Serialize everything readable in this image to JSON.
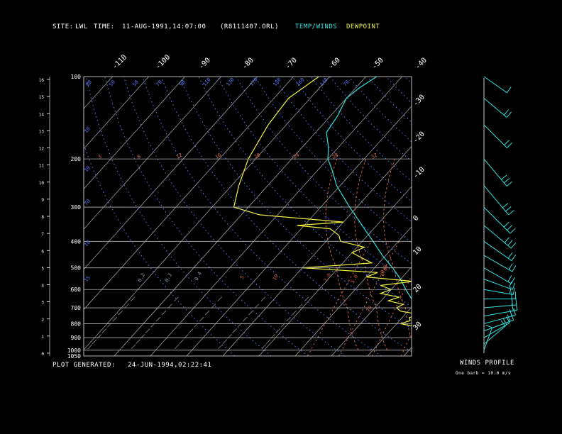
{
  "header": {
    "site_label": "SITE:",
    "site_value": "LWL",
    "time_label": "TIME:",
    "time_value": "11-AUG-1991,14:07:00",
    "file": "(R8111407.ORL)",
    "legend_temp": "TEMP/WINDS",
    "legend_dew": "DEWPOINT"
  },
  "footer": {
    "plot_generated_label": "PLOT GENERATED:",
    "plot_generated_value": "24-JUN-1994,02:22:41",
    "winds_title": "WINDS PROFILE",
    "barb_note": "One barb = 10.0 m/s"
  },
  "colors": {
    "temp": "#33e0e0",
    "dewpoint": "#f0f040",
    "isobar": "#b0b0b0",
    "isotherm": "#b0b0b0",
    "dry_adiabat": "#5a7cff",
    "mixing_ratio": "#e07050",
    "moist_adiabat": "#d06040"
  },
  "chart_data": {
    "type": "line",
    "pressure_levels": [
      100,
      200,
      300,
      400,
      500,
      600,
      700,
      800,
      900,
      1000,
      1050
    ],
    "pressure_labels": [
      "100",
      "200",
      "300",
      "400",
      "500",
      "600",
      "700",
      "800",
      "900",
      "1000",
      "1050"
    ],
    "height_km": [
      "0",
      "1",
      "2",
      "3",
      "4",
      "5",
      "6",
      "7",
      "8",
      "9",
      "10",
      "11",
      "12",
      "13",
      "14",
      "15",
      "16"
    ],
    "top_temp_labels": [
      "-110",
      "-100",
      "-90",
      "-80",
      "-70",
      "-60",
      "-50",
      "-40"
    ],
    "right_temp_labels": [
      "-30",
      "-20",
      "-10",
      "0",
      "10",
      "20",
      "30"
    ],
    "dry_adiabat_labels": [
      "80",
      "50",
      "50",
      "70",
      "90",
      "110",
      "130",
      "170",
      "150",
      "160",
      "140",
      "70",
      "10",
      "10",
      "70",
      "10",
      "15"
    ],
    "mixing_ratio_labels": [
      "3",
      "8",
      "12",
      "16",
      "20",
      "24",
      "28",
      "32"
    ],
    "moist_adiabat_labels": [
      "0.2",
      "0.3",
      "0.4",
      "5",
      "10",
      "2.0",
      "5.0",
      "6.0",
      "20",
      "0.0"
    ],
    "temperature": {
      "name": "TEMP/WINDS",
      "points": [
        [
          1000,
          24
        ],
        [
          950,
          20
        ],
        [
          900,
          16
        ],
        [
          850,
          13
        ],
        [
          800,
          10
        ],
        [
          750,
          6
        ],
        [
          700,
          2
        ],
        [
          650,
          -2
        ],
        [
          600,
          -6
        ],
        [
          550,
          -10
        ],
        [
          500,
          -15
        ],
        [
          450,
          -21
        ],
        [
          400,
          -27
        ],
        [
          350,
          -34
        ],
        [
          300,
          -42
        ],
        [
          250,
          -51
        ],
        [
          220,
          -56
        ],
        [
          200,
          -60
        ],
        [
          180,
          -63
        ],
        [
          160,
          -67
        ],
        [
          140,
          -68
        ],
        [
          120,
          -70
        ],
        [
          110,
          -69
        ],
        [
          100,
          -67
        ]
      ]
    },
    "dewpoint": {
      "name": "DEWPOINT",
      "points": [
        [
          1000,
          21
        ],
        [
          980,
          19
        ],
        [
          950,
          17
        ],
        [
          900,
          14
        ],
        [
          850,
          10
        ],
        [
          820,
          6
        ],
        [
          800,
          1
        ],
        [
          780,
          3
        ],
        [
          760,
          2
        ],
        [
          740,
          4
        ],
        [
          720,
          -2
        ],
        [
          700,
          -4
        ],
        [
          680,
          -3
        ],
        [
          660,
          -8
        ],
        [
          640,
          -6
        ],
        [
          620,
          -12
        ],
        [
          600,
          -10
        ],
        [
          580,
          -14
        ],
        [
          560,
          -6
        ],
        [
          540,
          -20
        ],
        [
          520,
          -18
        ],
        [
          500,
          -40
        ],
        [
          480,
          -22
        ],
        [
          460,
          -26
        ],
        [
          440,
          -30
        ],
        [
          420,
          -28
        ],
        [
          400,
          -36
        ],
        [
          380,
          -38
        ],
        [
          360,
          -42
        ],
        [
          350,
          -52
        ],
        [
          340,
          -40
        ],
        [
          320,
          -65
        ],
        [
          300,
          -74
        ],
        [
          250,
          -78
        ],
        [
          200,
          -82
        ],
        [
          150,
          -85
        ],
        [
          120,
          -86
        ],
        [
          100,
          -83
        ]
      ]
    },
    "winds": [
      {
        "p": 1000,
        "spd": 5,
        "dir": 200
      },
      {
        "p": 950,
        "spd": 12,
        "dir": 230
      },
      {
        "p": 900,
        "spd": 15,
        "dir": 240
      },
      {
        "p": 850,
        "spd": 18,
        "dir": 250
      },
      {
        "p": 800,
        "spd": 20,
        "dir": 255
      },
      {
        "p": 750,
        "spd": 22,
        "dir": 260
      },
      {
        "p": 700,
        "spd": 20,
        "dir": 265
      },
      {
        "p": 650,
        "spd": 18,
        "dir": 270
      },
      {
        "p": 600,
        "spd": 15,
        "dir": 280
      },
      {
        "p": 550,
        "spd": 16,
        "dir": 290
      },
      {
        "p": 500,
        "spd": 18,
        "dir": 300
      },
      {
        "p": 450,
        "spd": 20,
        "dir": 300
      },
      {
        "p": 400,
        "spd": 22,
        "dir": 305
      },
      {
        "p": 350,
        "spd": 25,
        "dir": 310
      },
      {
        "p": 300,
        "spd": 28,
        "dir": 315
      },
      {
        "p": 250,
        "spd": 30,
        "dir": 320
      },
      {
        "p": 200,
        "spd": 25,
        "dir": 320
      },
      {
        "p": 150,
        "spd": 20,
        "dir": 315
      },
      {
        "p": 120,
        "spd": 15,
        "dir": 310
      },
      {
        "p": 100,
        "spd": 12,
        "dir": 305
      }
    ]
  }
}
